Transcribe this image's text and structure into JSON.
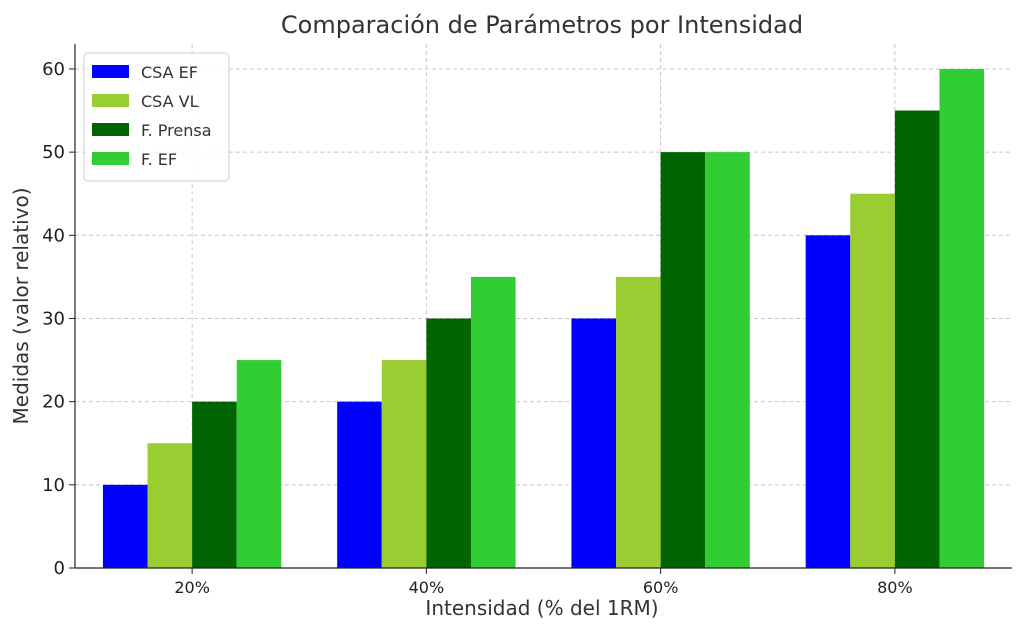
{
  "chart_data": {
    "type": "bar",
    "title": "Comparación de Parámetros por Intensidad",
    "xlabel": "Intensidad (% del 1RM)",
    "ylabel": "Medidas (valor relativo)",
    "categories": [
      "20%",
      "40%",
      "60%",
      "80%"
    ],
    "series": [
      {
        "name": "CSA EF",
        "color": "#0000ff",
        "values": [
          10,
          20,
          30,
          40
        ]
      },
      {
        "name": "CSA VL",
        "color": "#9acd32",
        "values": [
          15,
          25,
          35,
          45
        ]
      },
      {
        "name": "F. Prensa",
        "color": "#006400",
        "values": [
          20,
          30,
          50,
          55
        ]
      },
      {
        "name": "F. EF",
        "color": "#32cd32",
        "values": [
          25,
          35,
          50,
          60
        ]
      }
    ],
    "ylim": [
      0,
      63
    ],
    "yticks": [
      0,
      10,
      20,
      30,
      40,
      50,
      60
    ],
    "grid": true,
    "legend_position": "top-left"
  }
}
